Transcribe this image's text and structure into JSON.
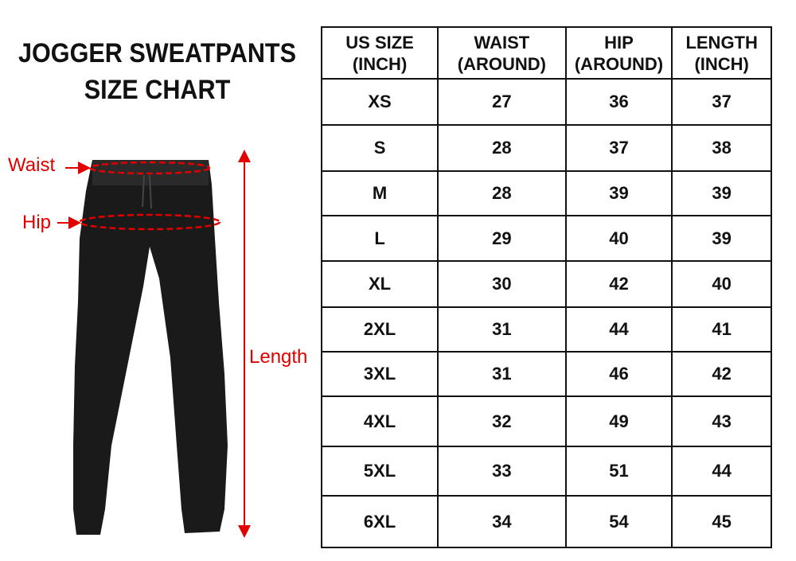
{
  "title": {
    "line1": "JOGGER SWEATPANTS",
    "line2": "SIZE CHART"
  },
  "labels": {
    "waist": "Waist",
    "hip": "Hip",
    "length": "Length"
  },
  "colors": {
    "accent": "#e00000",
    "garment": "#1a1a1a"
  },
  "table": {
    "headers": [
      {
        "line1": "US SIZE",
        "line2": "(INCH)"
      },
      {
        "line1": "WAIST",
        "line2": "(AROUND)"
      },
      {
        "line1": "HIP",
        "line2": "(AROUND)"
      },
      {
        "line1": "LENGTH",
        "line2": "(INCH)"
      }
    ],
    "rows": [
      [
        "XS",
        "27",
        "36",
        "37"
      ],
      [
        "S",
        "28",
        "37",
        "38"
      ],
      [
        "M",
        "28",
        "39",
        "39"
      ],
      [
        "L",
        "29",
        "40",
        "39"
      ],
      [
        "XL",
        "30",
        "42",
        "40"
      ],
      [
        "2XL",
        "31",
        "44",
        "41"
      ],
      [
        "3XL",
        "31",
        "46",
        "42"
      ],
      [
        "4XL",
        "32",
        "49",
        "43"
      ],
      [
        "5XL",
        "33",
        "51",
        "44"
      ],
      [
        "6XL",
        "34",
        "54",
        "45"
      ]
    ]
  }
}
